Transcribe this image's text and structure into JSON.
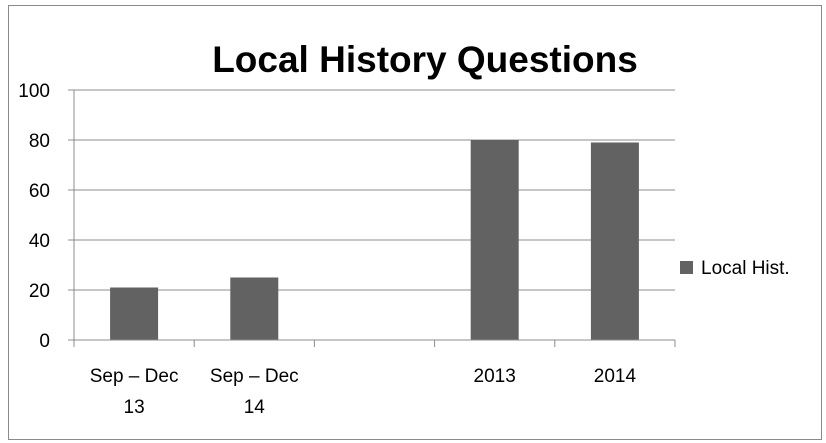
{
  "chart_data": {
    "type": "bar",
    "title": "Local History Questions",
    "xlabel": "",
    "ylabel": "",
    "categories": [
      [
        "Sep – Dec",
        "13"
      ],
      [
        "Sep – Dec",
        "14"
      ],
      [
        ""
      ],
      [
        "2013"
      ],
      [
        "2014"
      ]
    ],
    "series": [
      {
        "name": "Local Hist.",
        "values": [
          21,
          25,
          null,
          80,
          79
        ],
        "color": "#626262"
      }
    ],
    "ylim": [
      0,
      100
    ],
    "yticks": [
      0,
      20,
      40,
      60,
      80,
      100
    ],
    "grid": true,
    "legend_position": "right"
  }
}
